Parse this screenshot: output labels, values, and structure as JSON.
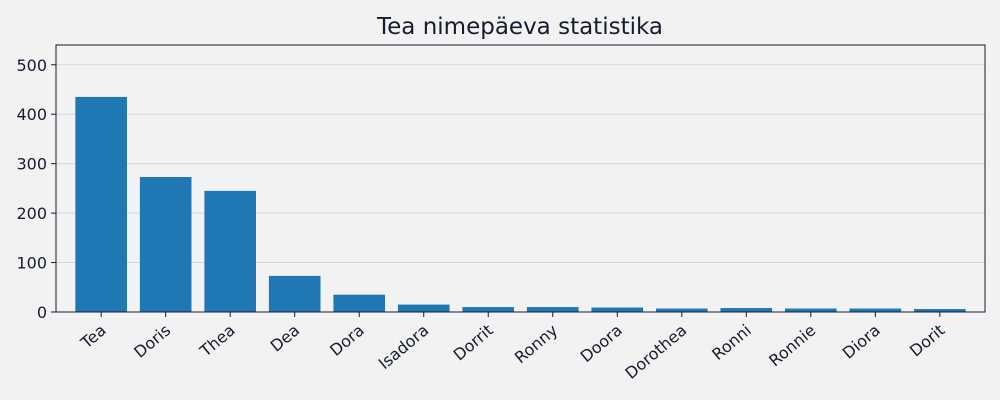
{
  "chart_data": {
    "type": "bar",
    "title": "Tea nimepäeva statistika",
    "xlabel": "",
    "ylabel": "",
    "categories": [
      "Tea",
      "Doris",
      "Thea",
      "Dea",
      "Dora",
      "Isadora",
      "Dorrit",
      "Ronny",
      "Doora",
      "Dorothea",
      "Ronni",
      "Ronnie",
      "Diora",
      "Dorit"
    ],
    "values": [
      435,
      273,
      245,
      73,
      35,
      15,
      10,
      10,
      9,
      7,
      8,
      7,
      7,
      6
    ],
    "ylim": [
      0,
      540
    ],
    "yticks": [
      0,
      100,
      200,
      300,
      400,
      500
    ],
    "grid": true,
    "bar_color": "#1f77b4"
  }
}
